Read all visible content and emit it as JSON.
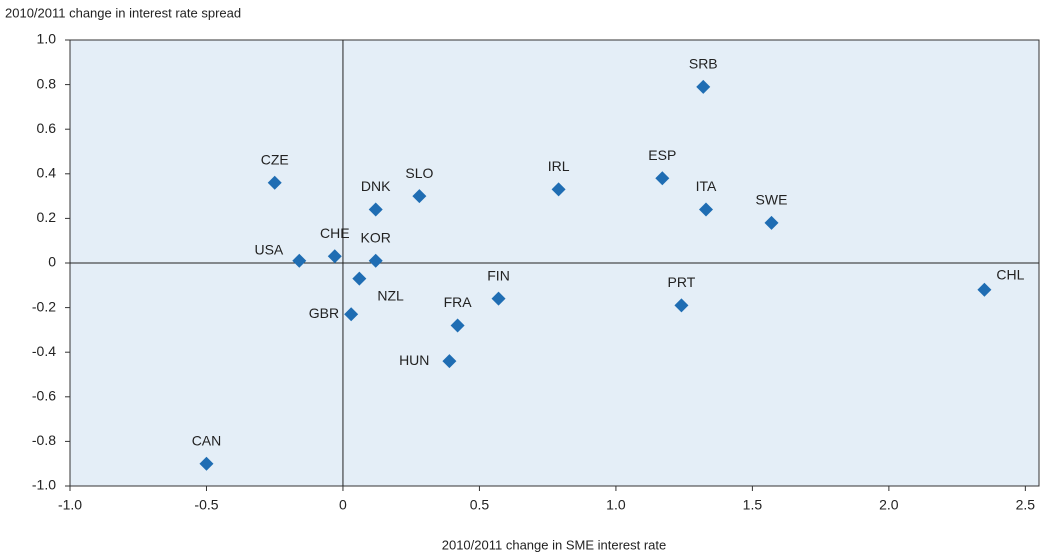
{
  "chart_data": {
    "type": "scatter",
    "xlabel": "2010/2011 change in SME interest rate",
    "ylabel": "2010/2011 change in interest rate spread",
    "labels": [
      "CZE",
      "DNK",
      "SLO",
      "IRL",
      "ESP",
      "SRB",
      "ITA",
      "SWE",
      "CHE",
      "USA",
      "KOR",
      "NZL",
      "GBR",
      "FRA",
      "FIN",
      "HUN",
      "PRT",
      "CHL",
      "CAN"
    ],
    "x": [
      -0.25,
      0.12,
      0.28,
      0.79,
      1.17,
      1.32,
      1.33,
      1.57,
      -0.03,
      -0.16,
      0.12,
      0.06,
      0.03,
      0.42,
      0.57,
      0.39,
      1.24,
      2.35,
      -0.5
    ],
    "values": [
      0.36,
      0.24,
      0.3,
      0.33,
      0.38,
      0.79,
      0.24,
      0.18,
      0.03,
      0.01,
      0.01,
      -0.07,
      -0.23,
      -0.28,
      -0.16,
      -0.44,
      -0.19,
      -0.12,
      -0.9
    ],
    "color": "#1f6db3",
    "xlim": [
      -1,
      2.55
    ],
    "ylim": [
      -1,
      1
    ],
    "xticks": [
      {
        "value": -1,
        "label": "-1.0"
      },
      -0.5,
      0,
      0.5,
      {
        "value": 1,
        "label": "1.0"
      },
      1.5,
      {
        "value": 2,
        "label": "2.0"
      },
      2.5
    ],
    "yticks": [
      {
        "value": -1,
        "label": "-1.0"
      },
      -0.8,
      -0.6,
      -0.4,
      -0.2,
      0,
      0.2,
      0.4,
      0.6,
      0.8,
      {
        "value": 1,
        "label": "1.0"
      }
    ]
  }
}
